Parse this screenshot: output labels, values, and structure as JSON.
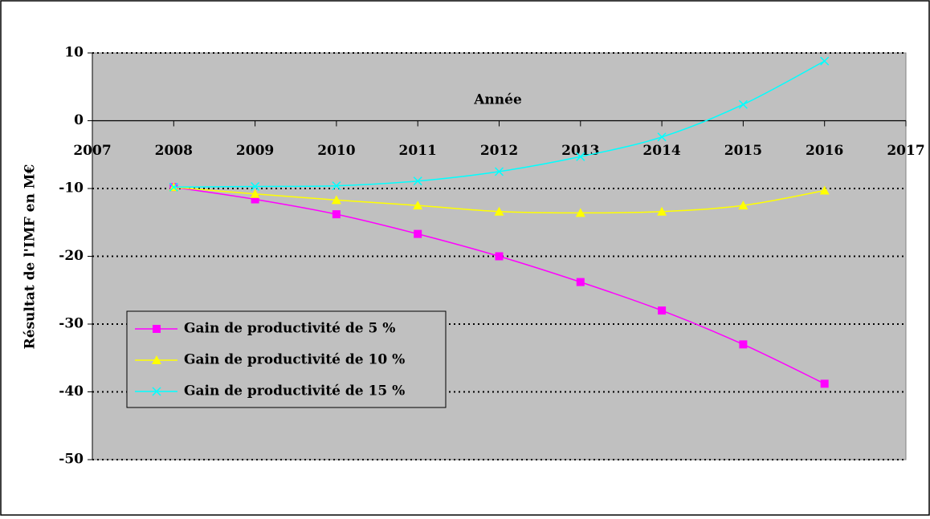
{
  "chart_data": {
    "type": "line",
    "x_label": "Année",
    "y_label": "Résultat de l'IMF en M€",
    "x": [
      2008,
      2009,
      2010,
      2011,
      2012,
      2013,
      2014,
      2015,
      2016
    ],
    "series": [
      {
        "name": "Gain de productivité de 5 %",
        "color": "#ff00ff",
        "marker": "square",
        "values": [
          -9.8,
          -11.6,
          -13.8,
          -16.7,
          -20.0,
          -23.8,
          -28.0,
          -33.0,
          -38.8
        ]
      },
      {
        "name": "Gain de productivité de 10 %",
        "color": "#ffff00",
        "marker": "triangle",
        "values": [
          -9.8,
          -10.8,
          -11.7,
          -12.5,
          -13.4,
          -13.6,
          -13.4,
          -12.5,
          -10.3
        ]
      },
      {
        "name": "Gain de productivité de 15 %",
        "color": "#00ffff",
        "marker": "x",
        "values": [
          -9.8,
          -9.7,
          -9.6,
          -8.9,
          -7.5,
          -5.3,
          -2.4,
          2.4,
          8.8
        ]
      }
    ],
    "xlim": [
      2007,
      2017
    ],
    "xticks": [
      2007,
      2008,
      2009,
      2010,
      2011,
      2012,
      2013,
      2014,
      2015,
      2016,
      2017
    ],
    "ylim": [
      -50,
      10
    ],
    "yticks": [
      -50,
      -40,
      -30,
      -20,
      -10,
      0,
      10
    ],
    "grid": true,
    "legend": "lower left",
    "background": "#c0c0c0"
  }
}
